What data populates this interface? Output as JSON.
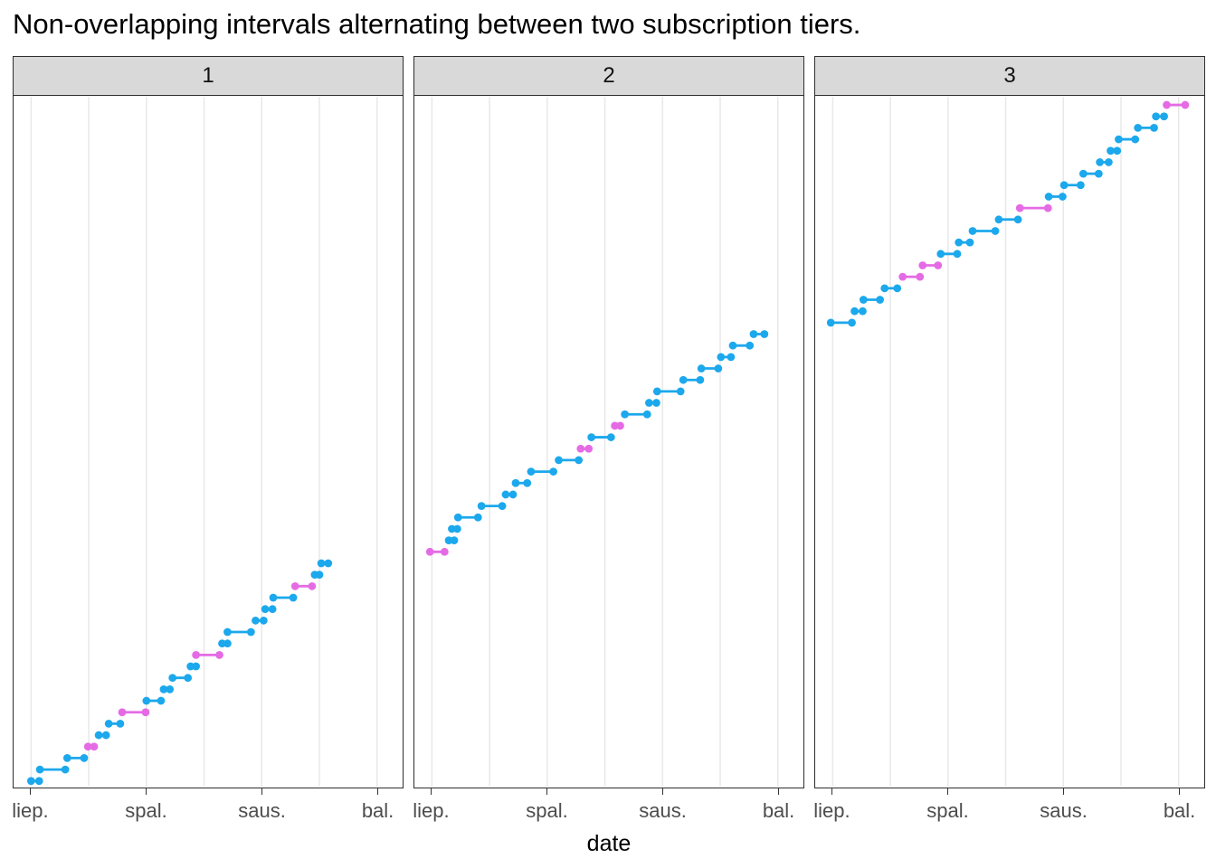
{
  "title": "Non-overlapping intervals alternating between two subscription tiers.",
  "axis": {
    "x_label": "date",
    "x_tick_labels": [
      "liep.",
      "spal.",
      "saus.",
      "bal."
    ],
    "x_tick_months": [
      0,
      3,
      6,
      9
    ],
    "x_minor_grid_months": [
      1.5,
      4.5,
      7.5
    ],
    "x_range_months": [
      -0.5,
      9.7
    ],
    "y_axis_labels_shown": false
  },
  "colors": {
    "blue": "#1ca8ec",
    "magenta": "#e56be5",
    "grid": "#e8e8e8",
    "panel_border": "#2e2e2e",
    "strip_bg": "#d9d9d9",
    "axis_text": "#4d4d4d",
    "title_text": "#000000"
  },
  "chart_data": {
    "type": "scatter",
    "subtype": "horizontal interval segments (dumbbell steps), faceted in 3 panels",
    "x_unit": "months after 'liep.' tick (liep.=0, spal.=3, saus.=6, bal.=9)",
    "y_unit": "interval index 1-60, shared y scale continuing across facets (no y labels shown)",
    "y_range": [
      1,
      60
    ],
    "grid": "vertical only",
    "legend": "none",
    "segments_format": [
      "start_month",
      "end_month",
      "interval_index",
      "tier"
    ],
    "facets": [
      {
        "label": "1",
        "segments": [
          [
            0.0,
            0.21,
            1,
            "blue"
          ],
          [
            0.23,
            0.89,
            2,
            "blue"
          ],
          [
            0.94,
            1.38,
            3,
            "blue"
          ],
          [
            1.48,
            1.64,
            4,
            "magenta"
          ],
          [
            1.76,
            1.95,
            5,
            "blue"
          ],
          [
            2.02,
            2.32,
            6,
            "blue"
          ],
          [
            2.37,
            2.98,
            7,
            "magenta"
          ],
          [
            3.0,
            3.38,
            8,
            "blue"
          ],
          [
            3.45,
            3.61,
            9,
            "blue"
          ],
          [
            3.68,
            4.08,
            10,
            "blue"
          ],
          [
            4.15,
            4.29,
            11,
            "blue"
          ],
          [
            4.29,
            4.9,
            12,
            "magenta"
          ],
          [
            4.97,
            5.11,
            13,
            "blue"
          ],
          [
            5.11,
            5.72,
            14,
            "blue"
          ],
          [
            5.84,
            6.05,
            15,
            "blue"
          ],
          [
            6.09,
            6.28,
            16,
            "blue"
          ],
          [
            6.3,
            6.82,
            17,
            "blue"
          ],
          [
            6.87,
            7.31,
            18,
            "magenta"
          ],
          [
            7.38,
            7.5,
            19,
            "blue"
          ],
          [
            7.55,
            7.73,
            20,
            "blue"
          ]
        ]
      },
      {
        "label": "2",
        "segments": [
          [
            -0.05,
            0.33,
            21,
            "magenta"
          ],
          [
            0.44,
            0.58,
            22,
            "blue"
          ],
          [
            0.52,
            0.66,
            23,
            "blue"
          ],
          [
            0.68,
            1.2,
            24,
            "blue"
          ],
          [
            1.29,
            1.83,
            25,
            "blue"
          ],
          [
            1.92,
            2.11,
            26,
            "blue"
          ],
          [
            2.18,
            2.48,
            27,
            "blue"
          ],
          [
            2.58,
            3.16,
            28,
            "blue"
          ],
          [
            3.3,
            3.82,
            29,
            "blue"
          ],
          [
            3.87,
            4.08,
            30,
            "magenta"
          ],
          [
            4.15,
            4.66,
            31,
            "blue"
          ],
          [
            4.76,
            4.9,
            32,
            "magenta"
          ],
          [
            5.02,
            5.6,
            33,
            "blue"
          ],
          [
            5.65,
            5.84,
            34,
            "blue"
          ],
          [
            5.86,
            6.47,
            35,
            "blue"
          ],
          [
            6.54,
            6.98,
            36,
            "blue"
          ],
          [
            7.01,
            7.45,
            37,
            "blue"
          ],
          [
            7.52,
            7.78,
            38,
            "blue"
          ],
          [
            7.83,
            8.27,
            39,
            "blue"
          ],
          [
            8.37,
            8.65,
            40,
            "blue"
          ]
        ]
      },
      {
        "label": "3",
        "segments": [
          [
            -0.05,
            0.5,
            41,
            "blue"
          ],
          [
            0.57,
            0.78,
            42,
            "blue"
          ],
          [
            0.8,
            1.23,
            43,
            "blue"
          ],
          [
            1.35,
            1.68,
            44,
            "blue"
          ],
          [
            1.82,
            2.27,
            45,
            "magenta"
          ],
          [
            2.34,
            2.74,
            46,
            "magenta"
          ],
          [
            2.81,
            3.24,
            47,
            "blue"
          ],
          [
            3.28,
            3.57,
            48,
            "blue"
          ],
          [
            3.64,
            4.23,
            49,
            "blue"
          ],
          [
            4.32,
            4.82,
            50,
            "blue"
          ],
          [
            4.87,
            5.6,
            51,
            "magenta"
          ],
          [
            5.62,
            5.98,
            52,
            "blue"
          ],
          [
            6.02,
            6.45,
            53,
            "blue"
          ],
          [
            6.52,
            6.92,
            54,
            "blue"
          ],
          [
            6.95,
            7.18,
            55,
            "blue"
          ],
          [
            7.23,
            7.4,
            56,
            "blue"
          ],
          [
            7.44,
            7.87,
            57,
            "blue"
          ],
          [
            7.94,
            8.36,
            58,
            "blue"
          ],
          [
            8.41,
            8.62,
            59,
            "blue"
          ],
          [
            8.69,
            9.17,
            60,
            "magenta"
          ]
        ]
      }
    ]
  }
}
